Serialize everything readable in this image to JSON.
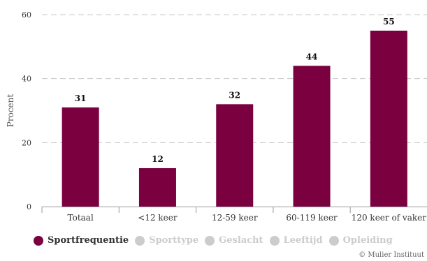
{
  "chart_data": {
    "type": "bar",
    "categories": [
      "Totaal",
      "<12 keer",
      "12-59 keer",
      "60-119 keer",
      "120 keer of vaker"
    ],
    "values": [
      31,
      12,
      32,
      44,
      55
    ],
    "ylabel": "Procent",
    "yticks": [
      0,
      20,
      40,
      60
    ],
    "ylim": [
      0,
      60
    ],
    "grid": true,
    "bar_color": "#7a0040",
    "legend_position": "bottom-left"
  },
  "legend": {
    "items": [
      {
        "label": "Sportfrequentie",
        "active": true,
        "color": "#7a0040"
      },
      {
        "label": "Sporttype",
        "active": false,
        "color": "#cccccc"
      },
      {
        "label": "Geslacht",
        "active": false,
        "color": "#cccccc"
      },
      {
        "label": "Leeftijd",
        "active": false,
        "color": "#cccccc"
      },
      {
        "label": "Opleiding",
        "active": false,
        "color": "#cccccc"
      }
    ],
    "active_text_color": "#333333",
    "inactive_text_color": "#cccccc"
  },
  "credit": "© Mulier Instituut"
}
